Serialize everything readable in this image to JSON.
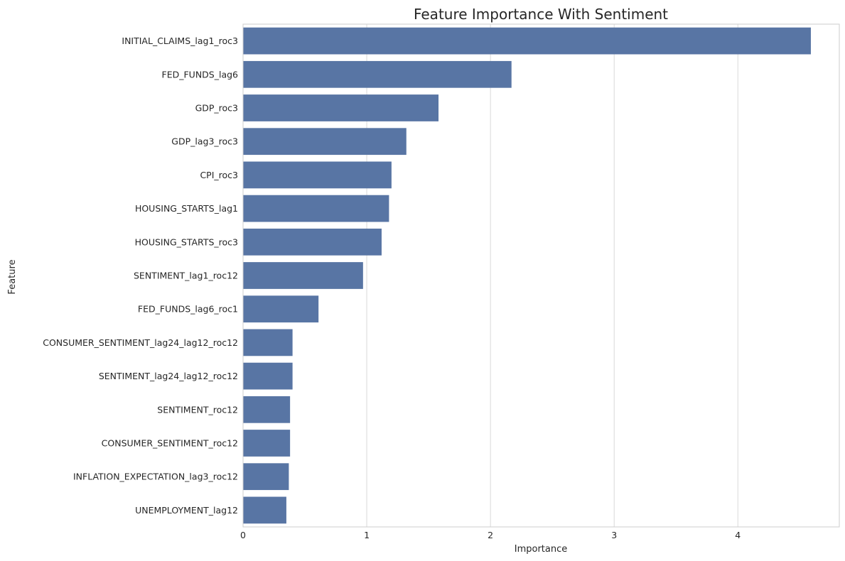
{
  "chart_data": {
    "type": "bar",
    "orientation": "horizontal",
    "title": "Feature Importance With Sentiment",
    "xlabel": "Importance",
    "ylabel": "Feature",
    "xlim": [
      0,
      4.82
    ],
    "xticks": [
      0,
      1,
      2,
      3,
      4
    ],
    "grid": "vertical",
    "bar_color": "#5875a4",
    "categories": [
      "INITIAL_CLAIMS_lag1_roc3",
      "FED_FUNDS_lag6",
      "GDP_roc3",
      "GDP_lag3_roc3",
      "CPI_roc3",
      "HOUSING_STARTS_lag1",
      "HOUSING_STARTS_roc3",
      "SENTIMENT_lag1_roc12",
      "FED_FUNDS_lag6_roc1",
      "CONSUMER_SENTIMENT_lag24_lag12_roc12",
      "SENTIMENT_lag24_lag12_roc12",
      "SENTIMENT_roc12",
      "CONSUMER_SENTIMENT_roc12",
      "INFLATION_EXPECTATION_lag3_roc12",
      "UNEMPLOYMENT_lag12"
    ],
    "values": [
      4.59,
      2.17,
      1.58,
      1.32,
      1.2,
      1.18,
      1.12,
      0.97,
      0.61,
      0.4,
      0.4,
      0.38,
      0.38,
      0.37,
      0.35
    ]
  }
}
